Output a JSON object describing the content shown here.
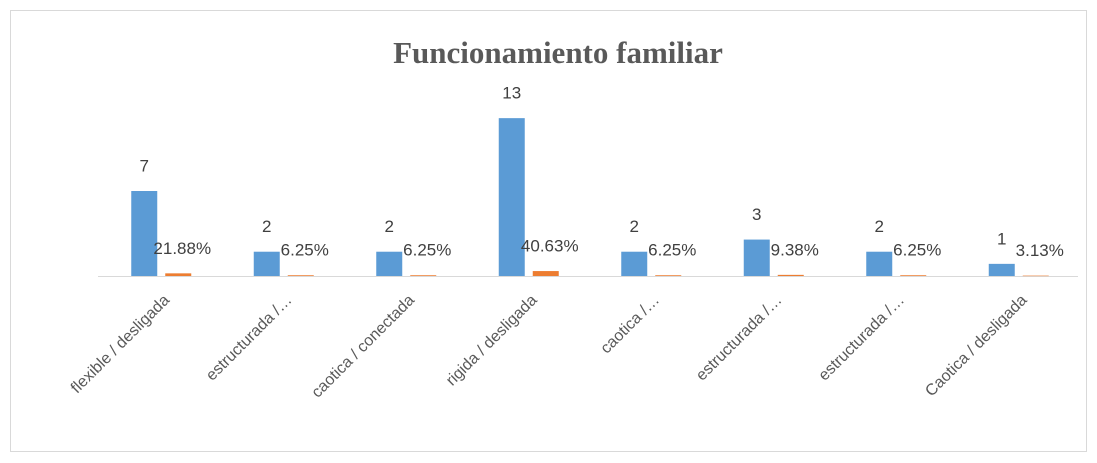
{
  "chart_data": {
    "type": "bar",
    "title": "Funcionamiento familiar",
    "categories": [
      "flexible / desligada",
      "estructurada /…",
      "caotica / conectada",
      "rigida / desligada",
      "caotica /…",
      "estructurada /…",
      "estructurada /…",
      "Caotica / desligada"
    ],
    "series": [
      {
        "color": "#5b9bd5",
        "values": [
          7,
          2,
          2,
          13,
          2,
          3,
          2,
          1
        ]
      },
      {
        "color": "#ed7d31",
        "values": [
          0.2188,
          0.0625,
          0.0625,
          0.4063,
          0.0625,
          0.0938,
          0.0625,
          0.0313
        ],
        "value_labels": [
          "21.88%",
          "6.25%",
          "6.25%",
          "40.63%",
          "6.25%",
          "9.38%",
          "6.25%",
          "3.13%"
        ]
      }
    ],
    "ylim": [
      0,
      14
    ]
  }
}
